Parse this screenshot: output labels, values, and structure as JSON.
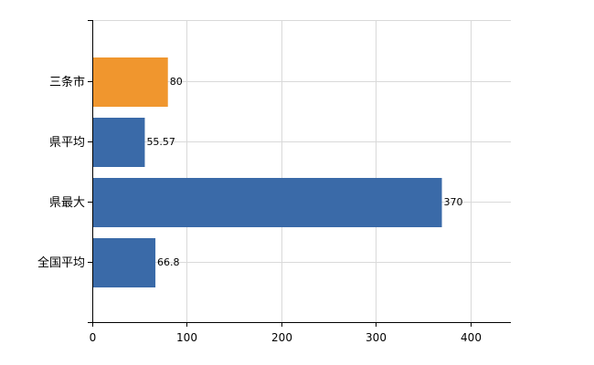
{
  "chart_data": {
    "type": "bar",
    "orientation": "horizontal",
    "categories": [
      "三条市",
      "県平均",
      "県最大",
      "全国平均"
    ],
    "values": [
      80,
      55.57,
      370,
      66.8
    ],
    "data_labels": [
      "80",
      "55.57",
      "370",
      "66.8"
    ],
    "bar_colors": [
      "#f0962e",
      "#3a6aa8",
      "#3a6aa8",
      "#3a6aa8"
    ],
    "xlim": [
      0,
      443
    ],
    "x_ticks": [
      0,
      100,
      200,
      300,
      400
    ],
    "x_tick_labels": [
      "0",
      "100",
      "200",
      "300",
      "400"
    ],
    "grid": true,
    "title": "",
    "xlabel": "",
    "ylabel": ""
  }
}
